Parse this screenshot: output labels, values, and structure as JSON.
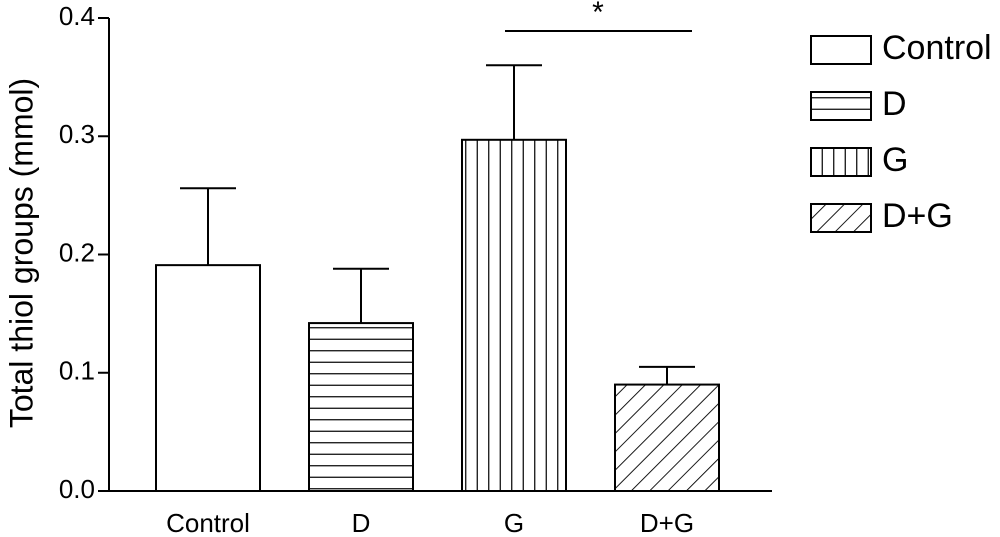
{
  "chart_data": {
    "type": "bar",
    "title": "",
    "xlabel": "",
    "ylabel": "Total thiol groups (mmol)",
    "ylim": [
      0,
      0.4
    ],
    "yticks": [
      "0.0",
      "0.1",
      "0.2",
      "0.3",
      "0.4"
    ],
    "ytick_values": [
      0,
      0.1,
      0.2,
      0.3,
      0.4
    ],
    "categories": [
      "Control",
      "D",
      "G",
      "D+G"
    ],
    "values": [
      0.191,
      0.142,
      0.297,
      0.09
    ],
    "errors": [
      0.065,
      0.046,
      0.063,
      0.015
    ],
    "patterns": [
      "blank",
      "horizontal",
      "vertical",
      "diagonal"
    ],
    "grid": false,
    "legend": {
      "placement": "right",
      "entries": [
        "Control",
        "D",
        "G",
        "D+G"
      ]
    },
    "annotation": {
      "text": "*",
      "between": [
        "G",
        "D+G"
      ]
    }
  }
}
